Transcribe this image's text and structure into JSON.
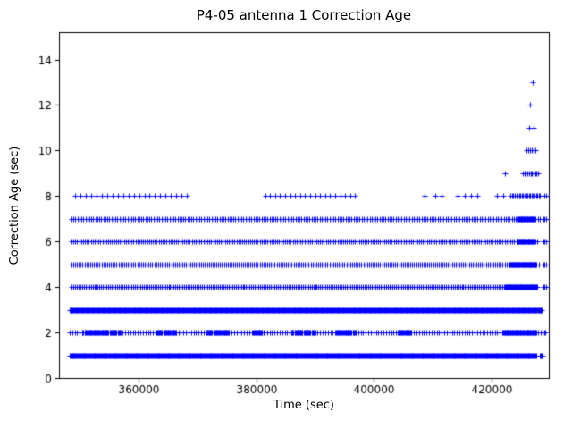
{
  "chart_data": {
    "type": "scatter",
    "title": "P4-05 antenna 1 Correction Age",
    "xlabel": "Time (sec)",
    "ylabel": "Correction Age (sec)",
    "xlim": [
      346500,
      429700
    ],
    "ylim": [
      0,
      15.2
    ],
    "xticks": [
      360000,
      380000,
      400000,
      420000
    ],
    "yticks": [
      0,
      2,
      4,
      6,
      8,
      10,
      12,
      14
    ],
    "marker": "+",
    "marker_size": 7,
    "grid": false,
    "colors": {
      "marker": "#0000ff",
      "axes": "#000000",
      "background": "#ffffff"
    },
    "bands": [
      {
        "y": 1,
        "segments": [
          [
            348300,
            427600,
            140
          ],
          [
            428200,
            428700,
            160
          ]
        ],
        "points": []
      },
      {
        "y": 2,
        "segments": [
          [
            348300,
            428400,
            430
          ],
          [
            350500,
            357000,
            170
          ],
          [
            363000,
            366500,
            170
          ],
          [
            371500,
            375500,
            170
          ],
          [
            379500,
            381500,
            170
          ],
          [
            386000,
            390000,
            170
          ],
          [
            393500,
            397000,
            170
          ],
          [
            404000,
            406500,
            170
          ],
          [
            421800,
            427600,
            140
          ],
          [
            428700,
            429300,
            220
          ]
        ],
        "points": []
      },
      {
        "y": 3,
        "segments": [
          [
            348300,
            428600,
            130
          ]
        ],
        "points": []
      },
      {
        "y": 4,
        "segments": [
          [
            348600,
            428000,
            300
          ],
          [
            422300,
            427600,
            130
          ],
          [
            428800,
            429200,
            200
          ]
        ],
        "points": []
      },
      {
        "y": 5,
        "segments": [
          [
            348600,
            428000,
            320
          ],
          [
            422800,
            427600,
            130
          ],
          [
            428800,
            429200,
            200
          ]
        ],
        "points": []
      },
      {
        "y": 6,
        "segments": [
          [
            348600,
            428000,
            330
          ],
          [
            424200,
            427400,
            130
          ],
          [
            428800,
            429200,
            200
          ]
        ],
        "points": []
      },
      {
        "y": 7,
        "segments": [
          [
            348600,
            428200,
            340
          ],
          [
            424500,
            427400,
            140
          ],
          [
            428800,
            429200,
            200
          ]
        ],
        "points": []
      },
      {
        "y": 8,
        "segments": [
          [
            349300,
            368200,
            900
          ],
          [
            381500,
            397300,
            850
          ],
          [
            423200,
            428400,
            240
          ],
          [
            428900,
            429200,
            300
          ]
        ],
        "points": [
          408600,
          410400,
          411500,
          414200,
          415400,
          416500,
          417600,
          420900,
          422000
        ]
      },
      {
        "y": 9,
        "segments": [
          [
            425300,
            427900,
            260
          ]
        ],
        "points": [
          422200
        ]
      },
      {
        "y": 10,
        "segments": [
          [
            425900,
            427400,
            300
          ]
        ],
        "points": []
      },
      {
        "y": 11,
        "segments": [],
        "points": [
          426350,
          427050
        ]
      },
      {
        "y": 12,
        "segments": [],
        "points": [
          426500
        ]
      },
      {
        "y": 13,
        "segments": [],
        "points": [
          426900
        ]
      }
    ]
  }
}
